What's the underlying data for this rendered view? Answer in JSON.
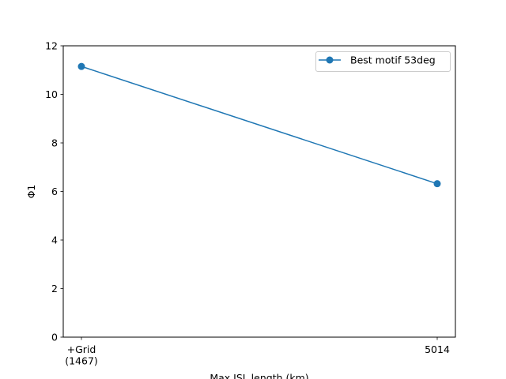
{
  "chart_data": {
    "type": "line",
    "categories": [
      "+Grid\n(1467)",
      "5014"
    ],
    "series": [
      {
        "name": "Best motif 53deg",
        "values": [
          11.15,
          6.32
        ],
        "color": "#1f77b4",
        "marker": "circle"
      }
    ],
    "xlabel": "Max ISL length (km)",
    "ylabel": "Φ1",
    "ylim": [
      0,
      12
    ],
    "yticks": [
      0,
      2,
      4,
      6,
      8,
      10,
      12
    ],
    "grid": false,
    "legend_position": "top-right"
  }
}
